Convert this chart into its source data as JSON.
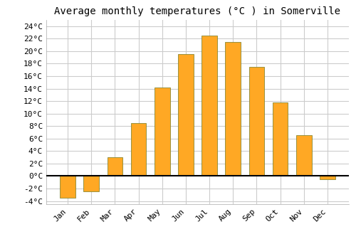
{
  "title": "Average monthly temperatures (°C ) in Somerville",
  "months": [
    "Jan",
    "Feb",
    "Mar",
    "Apr",
    "May",
    "Jun",
    "Jul",
    "Aug",
    "Sep",
    "Oct",
    "Nov",
    "Dec"
  ],
  "values": [
    -3.5,
    -2.5,
    3.0,
    8.5,
    14.2,
    19.5,
    22.5,
    21.5,
    17.5,
    11.8,
    6.5,
    -0.5
  ],
  "bar_color": "#FFA824",
  "edge_color": "#888833",
  "ylim": [
    -4.5,
    25
  ],
  "yticks": [
    -4,
    -2,
    0,
    2,
    4,
    6,
    8,
    10,
    12,
    14,
    16,
    18,
    20,
    22,
    24
  ],
  "grid_color": "#cccccc",
  "background_color": "#ffffff",
  "title_fontsize": 10,
  "tick_fontsize": 8,
  "font_family": "monospace",
  "bar_width": 0.65
}
